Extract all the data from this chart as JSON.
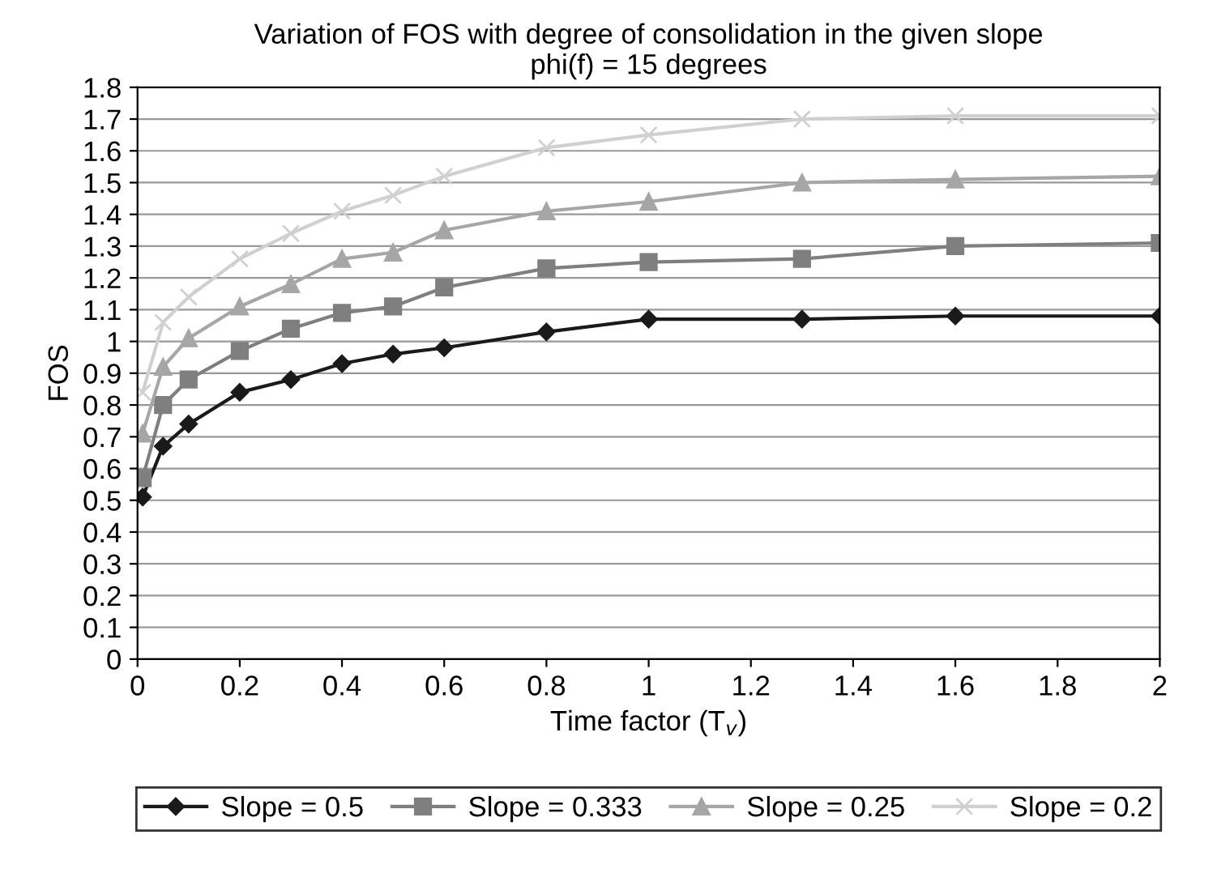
{
  "chart_data": {
    "type": "line",
    "title": "Variation of FOS with degree of consolidation in the given slope\nphi(f) = 15 degrees",
    "xlabel": "Time factor (T$_{v}$)",
    "ylabel": "FOS",
    "x": [
      0.01,
      0.05,
      0.1,
      0.2,
      0.3,
      0.4,
      0.5,
      0.6,
      0.8,
      1.0,
      1.3,
      1.6,
      2.0
    ],
    "series": [
      {
        "name": "Slope = 0.5",
        "color": "#1a1a1a",
        "marker": "diamond",
        "values": [
          0.51,
          0.67,
          0.74,
          0.84,
          0.88,
          0.93,
          0.96,
          0.98,
          1.03,
          1.07,
          1.07,
          1.08,
          1.08
        ]
      },
      {
        "name": "Slope = 0.333",
        "color": "#7f7f7f",
        "marker": "square",
        "values": [
          0.57,
          0.8,
          0.88,
          0.97,
          1.04,
          1.09,
          1.11,
          1.17,
          1.23,
          1.25,
          1.26,
          1.3,
          1.31
        ]
      },
      {
        "name": "Slope = 0.25",
        "color": "#a6a6a6",
        "marker": "triangle",
        "values": [
          0.71,
          0.92,
          1.01,
          1.11,
          1.18,
          1.26,
          1.28,
          1.35,
          1.41,
          1.44,
          1.5,
          1.51,
          1.52
        ]
      },
      {
        "name": "Slope = 0.2",
        "color": "#d0d0d0",
        "marker": "cross",
        "values": [
          0.84,
          1.06,
          1.14,
          1.26,
          1.34,
          1.41,
          1.46,
          1.52,
          1.61,
          1.65,
          1.7,
          1.71,
          1.71
        ]
      }
    ],
    "xlim": [
      0,
      2
    ],
    "xticks": [
      0,
      0.2,
      0.4,
      0.6,
      0.8,
      1,
      1.2,
      1.4,
      1.6,
      1.8,
      2
    ],
    "ylim": [
      0,
      1.8
    ],
    "yticks": [
      0,
      0.1,
      0.2,
      0.3,
      0.4,
      0.5,
      0.6,
      0.7,
      0.8,
      0.9,
      1,
      1.1,
      1.2,
      1.3,
      1.4,
      1.5,
      1.6,
      1.7,
      1.8
    ],
    "grid": "y",
    "legend": "bottom",
    "line_style": "solid"
  }
}
